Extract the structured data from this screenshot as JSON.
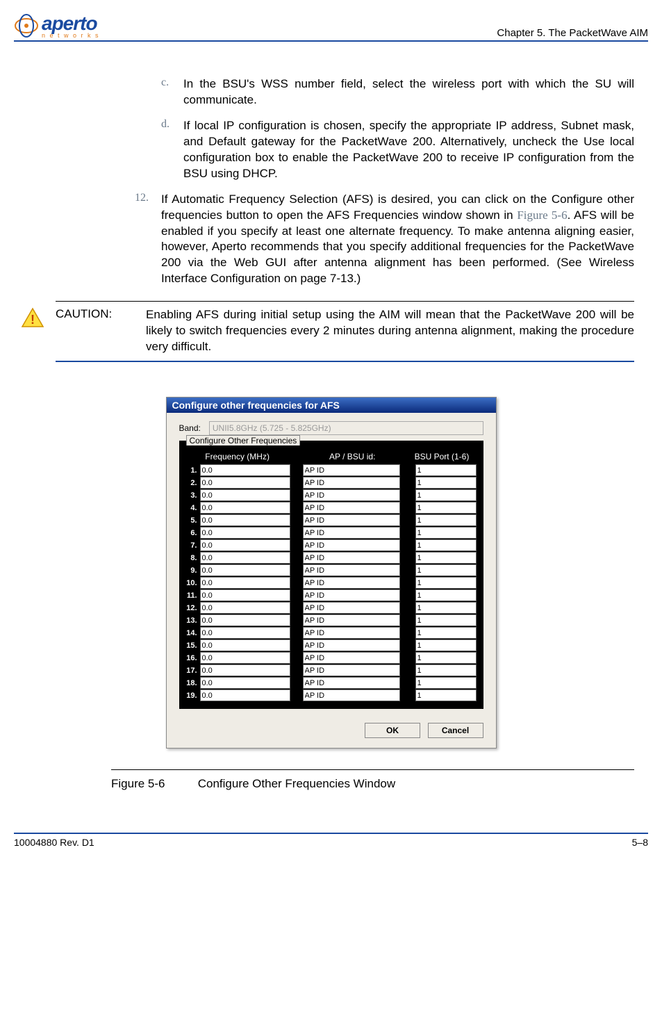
{
  "header": {
    "logo_main": "aperto",
    "logo_sub": "n e t w o r k s",
    "chapter": "Chapter 5.   The PacketWave AIM"
  },
  "items": {
    "c": {
      "letter": "c.",
      "text": "In the BSU's WSS number field, select the wireless port with which the SU will communicate."
    },
    "d": {
      "letter": "d.",
      "text": "If local IP configuration is chosen, specify the appropriate IP address, Subnet mask, and Default gateway for the PacketWave 200. Alternatively, uncheck the Use local configuration box to enable the PacketWave 200 to receive IP configuration from the BSU using DHCP."
    },
    "n12": {
      "num": "12.",
      "text_a": "If Automatic Frequency Selection (AFS) is desired, you can click on the Configure other frequencies button to open the AFS Frequencies window shown in ",
      "ref": "Figure 5-6",
      "text_b": ". AFS will be enabled if you specify at least one alternate frequency. To make antenna aligning easier, however, Aperto recommends that you specify additional frequencies for the PacketWave 200 via the Web GUI after antenna alignment has been performed. (See Wireless Interface Configuration on page 7-13.)"
    }
  },
  "caution": {
    "label": "CAUTION:",
    "text": "Enabling AFS during initial setup using the AIM will mean that the PacketWave 200 will be likely to switch frequencies every 2 minutes during antenna alignment, making the procedure very difficult."
  },
  "dialog": {
    "title": "Configure other frequencies for AFS",
    "band_label": "Band:",
    "band_value": "UNII5.8GHz (5.725 - 5.825GHz)",
    "panel_legend": "Configure Other Frequencies",
    "col_freq": "Frequency (MHz)",
    "col_ap": "AP / BSU  id:",
    "col_port": "BSU Port (1-6)",
    "rows": [
      {
        "n": "1.",
        "f": "0.0",
        "a": "AP ID",
        "p": "1"
      },
      {
        "n": "2.",
        "f": "0.0",
        "a": "AP ID",
        "p": "1"
      },
      {
        "n": "3.",
        "f": "0.0",
        "a": "AP ID",
        "p": "1"
      },
      {
        "n": "4.",
        "f": "0.0",
        "a": "AP ID",
        "p": "1"
      },
      {
        "n": "5.",
        "f": "0.0",
        "a": "AP ID",
        "p": "1"
      },
      {
        "n": "6.",
        "f": "0.0",
        "a": "AP ID",
        "p": "1"
      },
      {
        "n": "7.",
        "f": "0.0",
        "a": "AP ID",
        "p": "1"
      },
      {
        "n": "8.",
        "f": "0.0",
        "a": "AP ID",
        "p": "1"
      },
      {
        "n": "9.",
        "f": "0.0",
        "a": "AP ID",
        "p": "1"
      },
      {
        "n": "10.",
        "f": "0.0",
        "a": "AP ID",
        "p": "1"
      },
      {
        "n": "11.",
        "f": "0.0",
        "a": "AP ID",
        "p": "1"
      },
      {
        "n": "12.",
        "f": "0.0",
        "a": "AP ID",
        "p": "1"
      },
      {
        "n": "13.",
        "f": "0.0",
        "a": "AP ID",
        "p": "1"
      },
      {
        "n": "14.",
        "f": "0.0",
        "a": "AP ID",
        "p": "1"
      },
      {
        "n": "15.",
        "f": "0.0",
        "a": "AP ID",
        "p": "1"
      },
      {
        "n": "16.",
        "f": "0.0",
        "a": "AP ID",
        "p": "1"
      },
      {
        "n": "17.",
        "f": "0.0",
        "a": "AP ID",
        "p": "1"
      },
      {
        "n": "18.",
        "f": "0.0",
        "a": "AP ID",
        "p": "1"
      },
      {
        "n": "19.",
        "f": "0.0",
        "a": "AP ID",
        "p": "1"
      }
    ],
    "ok": "OK",
    "cancel": "Cancel"
  },
  "figure": {
    "label": "Figure 5-6",
    "caption": "Configure Other Frequencies Window"
  },
  "footer": {
    "doc": "10004880 Rev. D1",
    "page": "5–8"
  }
}
